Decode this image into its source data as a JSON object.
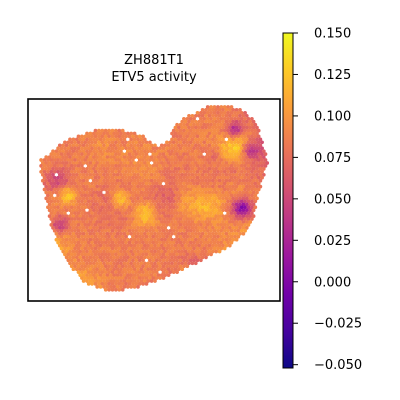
{
  "chart_data": {
    "type": "heatmap",
    "subtype": "spatial-transcriptomics-spot-plot",
    "title_lines": [
      "ZH881T1",
      "ETV5 activity"
    ],
    "xlabel": "",
    "ylabel": "",
    "colormap": "plasma",
    "value_range": [
      -0.052,
      0.15
    ],
    "colorbar": {
      "position": "right",
      "ticks": [
        0.15,
        0.125,
        0.1,
        0.075,
        0.05,
        0.025,
        0.0,
        -0.025,
        -0.05
      ],
      "tick_labels": [
        "0.150",
        "0.125",
        "0.100",
        "0.075",
        "0.050",
        "0.025",
        "0.000",
        "−0.025",
        "−0.050"
      ]
    },
    "spots_note": "dense hexagonal spot grid forming a heart-shaped tissue section; values mostly 0.05–0.15 with low-activity patches near the right edge",
    "colors": {
      "cmap_stops": [
        "#0d0887",
        "#46039f",
        "#7201a8",
        "#9c179e",
        "#bd3786",
        "#d8576b",
        "#ed7953",
        "#fb9f3a",
        "#fdca26",
        "#f0f921"
      ],
      "frame": "#000000",
      "background": "#ffffff"
    }
  }
}
